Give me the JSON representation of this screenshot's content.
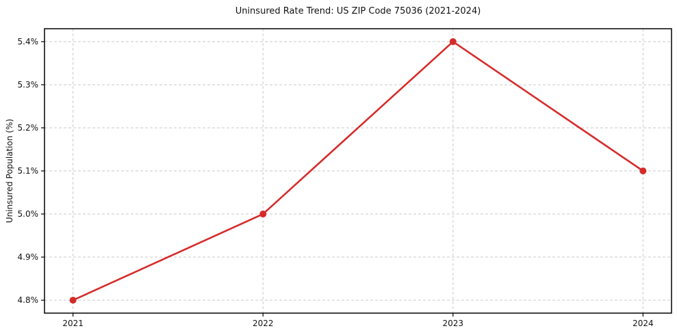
{
  "chart_data": {
    "type": "line",
    "title": "Uninsured Rate Trend: US ZIP Code 75036 (2021-2024)",
    "xlabel": "",
    "ylabel": "Uninsured Population (%)",
    "x": [
      2021,
      2022,
      2023,
      2024
    ],
    "categories": [
      "2021",
      "2022",
      "2023",
      "2024"
    ],
    "series": [
      {
        "name": "Uninsured rate",
        "values": [
          4.8,
          5.0,
          5.4,
          5.1
        ]
      }
    ],
    "x_ticks": [
      2021,
      2022,
      2023,
      2024
    ],
    "x_tick_labels": [
      "2021",
      "2022",
      "2023",
      "2024"
    ],
    "y_ticks": [
      4.8,
      4.9,
      5.0,
      5.1,
      5.2,
      5.3,
      5.4
    ],
    "y_tick_labels": [
      "4.8%",
      "4.9%",
      "5.0%",
      "5.1%",
      "5.2%",
      "5.3%",
      "5.4%"
    ],
    "xlim": [
      2020.85,
      2024.15
    ],
    "ylim": [
      4.77,
      5.43
    ],
    "grid": true,
    "grid_style": "dashed",
    "legend": "none",
    "colors": {
      "line": "#d62b2b",
      "marker": "#d62b2b",
      "grid": "#c9c9c9",
      "spine": "#000000",
      "text": "#111111",
      "background": "#ffffff"
    }
  }
}
